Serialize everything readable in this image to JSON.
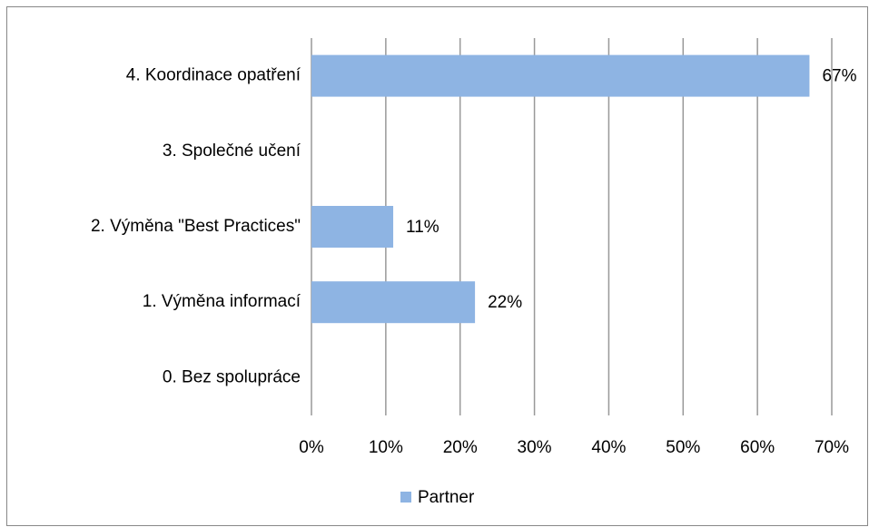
{
  "chart_data": {
    "type": "hbar",
    "categories": [
      "4. Koordinace opatření",
      "3. Společné učení",
      "2. Výměna \"Best Practices\"",
      "1. Výměna informací",
      "0. Bez spolupráce"
    ],
    "series": [
      {
        "name": "Partner",
        "color": "#8eb4e3",
        "values": [
          67,
          null,
          11,
          22,
          null
        ],
        "value_labels": [
          "67%",
          null,
          "11%",
          "22%",
          null
        ]
      }
    ],
    "xlim": [
      0,
      70
    ],
    "xticks": [
      {
        "value": 0,
        "label": "0%"
      },
      {
        "value": 10,
        "label": "10%"
      },
      {
        "value": 20,
        "label": "20%"
      },
      {
        "value": 30,
        "label": "30%"
      },
      {
        "value": 40,
        "label": "40%"
      },
      {
        "value": 50,
        "label": "50%"
      },
      {
        "value": 60,
        "label": "60%"
      },
      {
        "value": 70,
        "label": "70%"
      }
    ],
    "grid": true,
    "legend": "bottom"
  }
}
